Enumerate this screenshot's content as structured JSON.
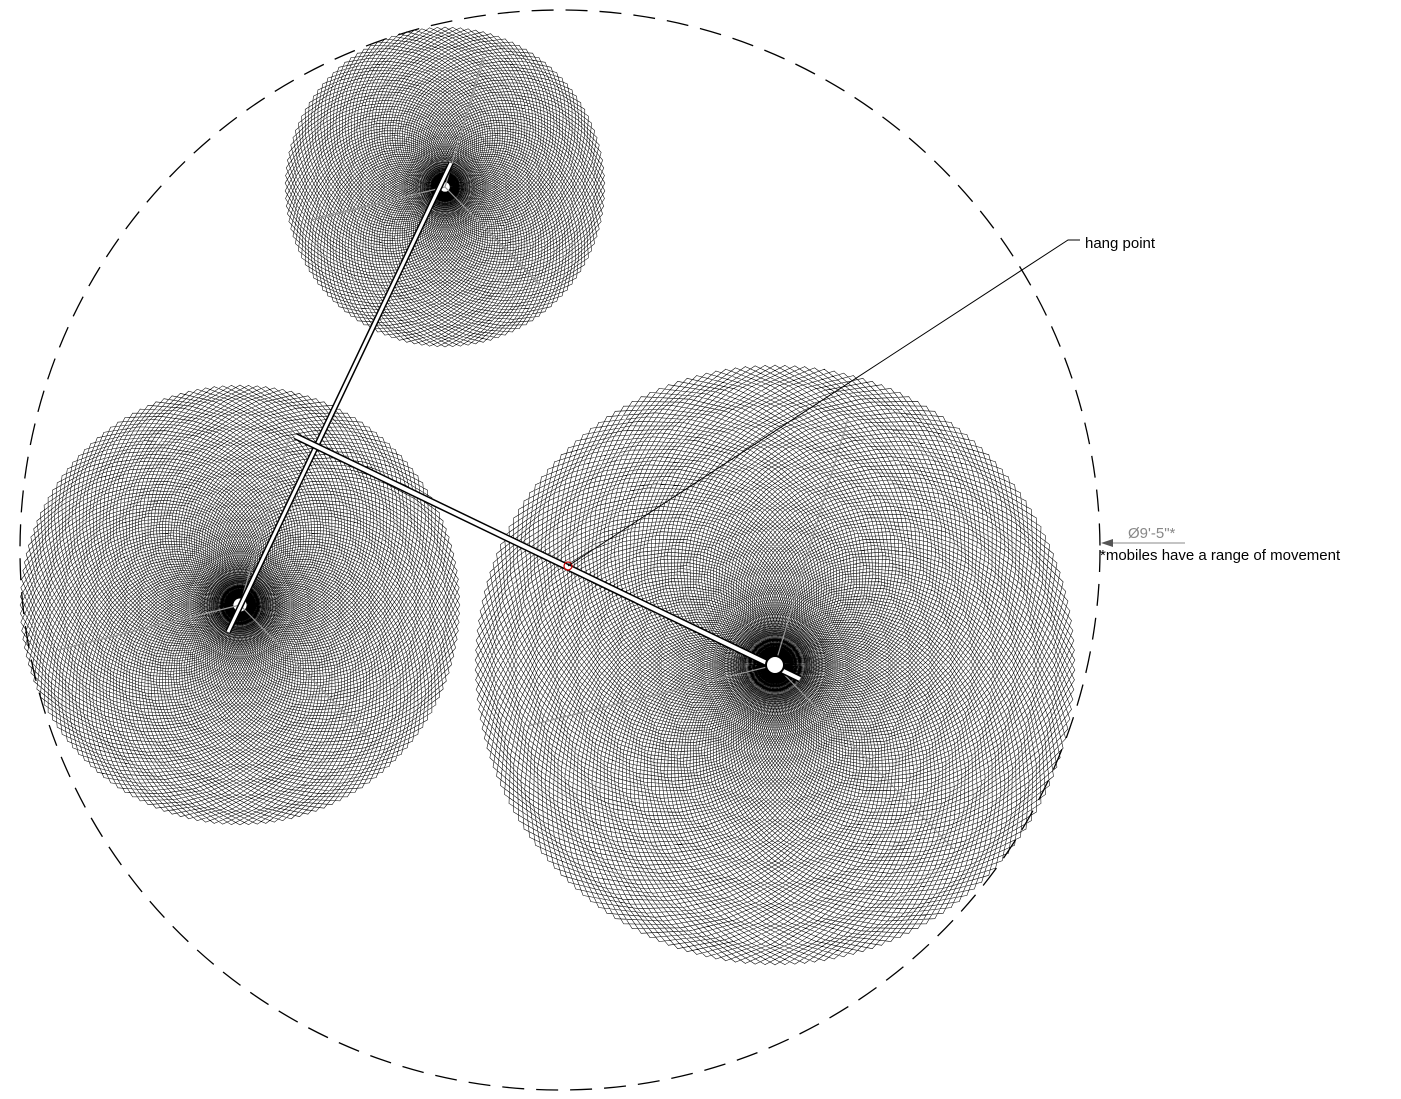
{
  "annotations": {
    "hang_point": "hang point",
    "diameter": "Ø9'-5\"*",
    "note": "*mobiles have a range of movement"
  }
}
